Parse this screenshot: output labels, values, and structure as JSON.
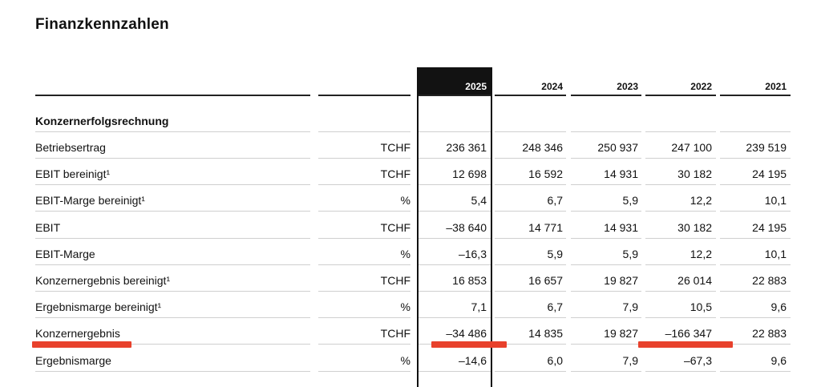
{
  "title": "Finanzkennzahlen",
  "years": [
    "2025",
    "2024",
    "2023",
    "2022",
    "2021"
  ],
  "section": "Konzernerfolgsrechnung",
  "rows": [
    {
      "label": "Betriebsertrag",
      "unit": "TCHF",
      "values": [
        "236 361",
        "248 346",
        "250 937",
        "247 100",
        "239 519"
      ]
    },
    {
      "label": "EBIT bereinigt¹",
      "unit": "TCHF",
      "values": [
        "12 698",
        "16 592",
        "14 931",
        "30 182",
        "24 195"
      ]
    },
    {
      "label": "EBIT-Marge bereinigt¹",
      "unit": "%",
      "values": [
        "5,4",
        "6,7",
        "5,9",
        "12,2",
        "10,1"
      ]
    },
    {
      "label": "EBIT",
      "unit": "TCHF",
      "values": [
        "–38 640",
        "14 771",
        "14 931",
        "30 182",
        "24 195"
      ]
    },
    {
      "label": "EBIT-Marge",
      "unit": "%",
      "values": [
        "–16,3",
        "5,9",
        "5,9",
        "12,2",
        "10,1"
      ]
    },
    {
      "label": "Konzernergebnis bereinigt¹",
      "unit": "TCHF",
      "values": [
        "16 853",
        "16 657",
        "19 827",
        "26 014",
        "22 883"
      ]
    },
    {
      "label": "Ergebnismarge bereinigt¹",
      "unit": "%",
      "values": [
        "7,1",
        "6,7",
        "7,9",
        "10,5",
        "9,6"
      ]
    },
    {
      "label": "Konzernergebnis",
      "unit": "TCHF",
      "values": [
        "–34 486",
        "14 835",
        "19 827",
        "–166 347",
        "22 883"
      ]
    },
    {
      "label": "Ergebnismarge",
      "unit": "%",
      "values": [
        "–14,6",
        "6,0",
        "7,9",
        "–67,3",
        "9,6"
      ]
    }
  ],
  "highlight_color": "#e8412c"
}
